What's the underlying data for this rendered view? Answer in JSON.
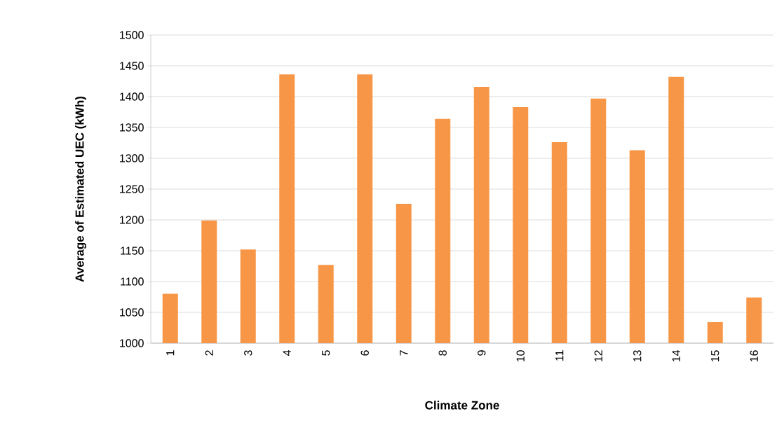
{
  "chart_data": {
    "type": "bar",
    "xlabel": "Climate Zone",
    "ylabel": "Average of Estimated UEC (kWh)",
    "categories": [
      "1",
      "2",
      "3",
      "4",
      "5",
      "6",
      "7",
      "8",
      "9",
      "10",
      "11",
      "12",
      "13",
      "14",
      "15",
      "16"
    ],
    "values": [
      1080,
      1199,
      1152,
      1436,
      1127,
      1436,
      1226,
      1364,
      1416,
      1383,
      1326,
      1397,
      1313,
      1432,
      1034,
      1074
    ],
    "color": "#f79646",
    "ylim": [
      1000,
      1500
    ],
    "yticks": [
      1000,
      1050,
      1100,
      1150,
      1200,
      1250,
      1300,
      1350,
      1400,
      1450,
      1500
    ],
    "grid": "y"
  }
}
